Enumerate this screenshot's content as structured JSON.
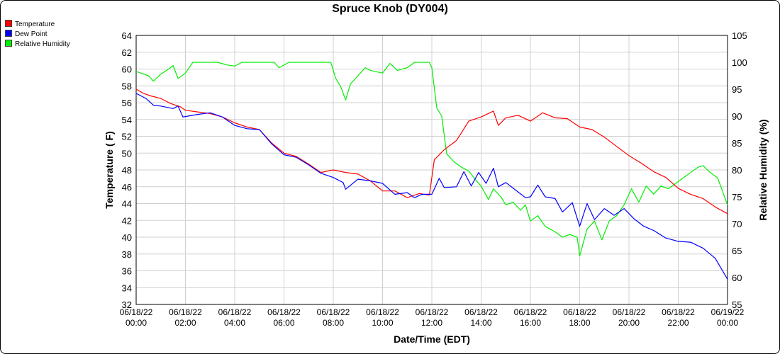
{
  "chart_data": {
    "type": "line",
    "title": "Spruce Knob (DY004)",
    "xlabel": "Date/Time (EDT)",
    "ylabel_left": "Temperature ( F)",
    "ylabel_right": "Relative Humidity (%)",
    "x_range_hours": [
      0,
      24
    ],
    "y_left_lim": [
      32,
      64
    ],
    "y_left_ticks": [
      "32",
      "34",
      "36",
      "38",
      "40",
      "42",
      "44",
      "46",
      "48",
      "50",
      "52",
      "54",
      "56",
      "58",
      "60",
      "62",
      "64"
    ],
    "y_right_lim": [
      55,
      105
    ],
    "y_right_ticks": [
      "55",
      "60",
      "65",
      "70",
      "75",
      "80",
      "85",
      "90",
      "95",
      "100",
      "105"
    ],
    "x_ticks": [
      {
        "h": 0,
        "date": "06/18/22",
        "time": "00:00"
      },
      {
        "h": 2,
        "date": "06/18/22",
        "time": "02:00"
      },
      {
        "h": 4,
        "date": "06/18/22",
        "time": "04:00"
      },
      {
        "h": 6,
        "date": "06/18/22",
        "time": "06:00"
      },
      {
        "h": 8,
        "date": "06/18/22",
        "time": "08:00"
      },
      {
        "h": 10,
        "date": "06/18/22",
        "time": "10:00"
      },
      {
        "h": 12,
        "date": "06/18/22",
        "time": "12:00"
      },
      {
        "h": 14,
        "date": "06/18/22",
        "time": "14:00"
      },
      {
        "h": 16,
        "date": "06/18/22",
        "time": "16:00"
      },
      {
        "h": 18,
        "date": "06/18/22",
        "time": "18:00"
      },
      {
        "h": 20,
        "date": "06/18/22",
        "time": "20:00"
      },
      {
        "h": 22,
        "date": "06/18/22",
        "time": "22:00"
      },
      {
        "h": 24,
        "date": "06/19/22",
        "time": "00:00"
      }
    ],
    "grid": true,
    "legend_position": "top-left",
    "series": [
      {
        "name": "Temperature",
        "axis": "left",
        "color": "#ff0000",
        "points": [
          [
            0,
            57.6
          ],
          [
            0.3,
            57.1
          ],
          [
            0.6,
            56.8
          ],
          [
            1.0,
            56.5
          ],
          [
            1.4,
            55.9
          ],
          [
            1.8,
            55.5
          ],
          [
            2.0,
            55.1
          ],
          [
            2.5,
            54.9
          ],
          [
            3.0,
            54.7
          ],
          [
            3.5,
            54.3
          ],
          [
            4.0,
            53.6
          ],
          [
            4.5,
            53.1
          ],
          [
            5.0,
            52.8
          ],
          [
            5.5,
            51.2
          ],
          [
            6.0,
            50.0
          ],
          [
            6.5,
            49.6
          ],
          [
            7.0,
            48.7
          ],
          [
            7.5,
            47.7
          ],
          [
            8.0,
            48.0
          ],
          [
            8.5,
            47.7
          ],
          [
            9.0,
            47.5
          ],
          [
            9.5,
            46.7
          ],
          [
            10.0,
            45.5
          ],
          [
            10.5,
            45.5
          ],
          [
            11.0,
            44.7
          ],
          [
            11.5,
            45.2
          ],
          [
            11.9,
            45.0
          ],
          [
            12.1,
            49.2
          ],
          [
            12.5,
            50.4
          ],
          [
            13.0,
            51.5
          ],
          [
            13.5,
            53.8
          ],
          [
            14.0,
            54.3
          ],
          [
            14.5,
            55.0
          ],
          [
            14.7,
            53.3
          ],
          [
            15.0,
            54.2
          ],
          [
            15.5,
            54.5
          ],
          [
            16.0,
            53.8
          ],
          [
            16.5,
            54.8
          ],
          [
            17.0,
            54.2
          ],
          [
            17.5,
            54.1
          ],
          [
            18.0,
            53.1
          ],
          [
            18.5,
            52.8
          ],
          [
            19.0,
            51.9
          ],
          [
            19.5,
            50.8
          ],
          [
            20.0,
            49.7
          ],
          [
            20.5,
            48.8
          ],
          [
            21.0,
            47.8
          ],
          [
            21.5,
            47.1
          ],
          [
            22.0,
            45.8
          ],
          [
            22.5,
            45.1
          ],
          [
            23.0,
            44.6
          ],
          [
            23.5,
            43.6
          ],
          [
            24.0,
            42.8
          ]
        ]
      },
      {
        "name": "Dew Point",
        "axis": "left",
        "color": "#0000ff",
        "points": [
          [
            0,
            57.1
          ],
          [
            0.4,
            56.5
          ],
          [
            0.7,
            55.7
          ],
          [
            1.0,
            55.6
          ],
          [
            1.5,
            55.3
          ],
          [
            1.7,
            55.6
          ],
          [
            1.9,
            54.3
          ],
          [
            2.1,
            54.4
          ],
          [
            2.5,
            54.6
          ],
          [
            3.0,
            54.8
          ],
          [
            3.5,
            54.3
          ],
          [
            4.0,
            53.3
          ],
          [
            4.5,
            52.9
          ],
          [
            5.0,
            52.8
          ],
          [
            5.5,
            51.1
          ],
          [
            6.0,
            49.8
          ],
          [
            6.5,
            49.5
          ],
          [
            7.0,
            48.6
          ],
          [
            7.5,
            47.6
          ],
          [
            8.0,
            47.1
          ],
          [
            8.4,
            46.5
          ],
          [
            8.5,
            45.7
          ],
          [
            9.0,
            46.9
          ],
          [
            9.5,
            46.7
          ],
          [
            10.0,
            46.4
          ],
          [
            10.5,
            45.1
          ],
          [
            11.0,
            45.3
          ],
          [
            11.3,
            44.7
          ],
          [
            11.6,
            45.1
          ],
          [
            12.0,
            45.1
          ],
          [
            12.3,
            47.0
          ],
          [
            12.5,
            45.9
          ],
          [
            13.0,
            46.0
          ],
          [
            13.3,
            47.8
          ],
          [
            13.6,
            46.1
          ],
          [
            13.9,
            47.7
          ],
          [
            14.2,
            46.4
          ],
          [
            14.5,
            48.2
          ],
          [
            14.7,
            46.0
          ],
          [
            15.0,
            46.5
          ],
          [
            15.4,
            45.6
          ],
          [
            15.8,
            44.7
          ],
          [
            16.0,
            44.8
          ],
          [
            16.3,
            46.2
          ],
          [
            16.6,
            44.8
          ],
          [
            17.0,
            44.6
          ],
          [
            17.3,
            43.0
          ],
          [
            17.7,
            44.1
          ],
          [
            18.0,
            41.3
          ],
          [
            18.3,
            44.0
          ],
          [
            18.6,
            42.1
          ],
          [
            19.0,
            43.4
          ],
          [
            19.4,
            42.6
          ],
          [
            19.8,
            43.4
          ],
          [
            20.2,
            42.2
          ],
          [
            20.6,
            41.3
          ],
          [
            21.0,
            40.8
          ],
          [
            21.5,
            39.9
          ],
          [
            22.0,
            39.5
          ],
          [
            22.5,
            39.4
          ],
          [
            23.0,
            38.7
          ],
          [
            23.5,
            37.5
          ],
          [
            24.0,
            35.0
          ]
        ]
      },
      {
        "name": "Relative Humidity",
        "axis": "right",
        "color": "#00ee00",
        "points": [
          [
            0,
            98.3
          ],
          [
            0.5,
            97.5
          ],
          [
            0.7,
            96.5
          ],
          [
            1.0,
            97.8
          ],
          [
            1.3,
            98.7
          ],
          [
            1.5,
            99.4
          ],
          [
            1.7,
            97.0
          ],
          [
            2.0,
            98.0
          ],
          [
            2.3,
            100.0
          ],
          [
            2.8,
            100.0
          ],
          [
            3.3,
            100.0
          ],
          [
            3.7,
            99.5
          ],
          [
            4.0,
            99.3
          ],
          [
            4.3,
            100.0
          ],
          [
            5.0,
            100.0
          ],
          [
            5.6,
            100.0
          ],
          [
            5.8,
            99.0
          ],
          [
            6.2,
            100.0
          ],
          [
            7.0,
            100.0
          ],
          [
            7.9,
            100.0
          ],
          [
            8.1,
            97.0
          ],
          [
            8.3,
            95.5
          ],
          [
            8.5,
            93.0
          ],
          [
            8.7,
            96.0
          ],
          [
            9.0,
            97.5
          ],
          [
            9.3,
            99.0
          ],
          [
            9.5,
            98.5
          ],
          [
            10.0,
            98.0
          ],
          [
            10.3,
            99.8
          ],
          [
            10.6,
            98.5
          ],
          [
            11.0,
            99.0
          ],
          [
            11.3,
            100.0
          ],
          [
            11.9,
            100.0
          ],
          [
            12.0,
            99.0
          ],
          [
            12.2,
            91.5
          ],
          [
            12.4,
            90.0
          ],
          [
            12.6,
            83.0
          ],
          [
            12.9,
            81.5
          ],
          [
            13.2,
            80.5
          ],
          [
            13.5,
            79.8
          ],
          [
            13.8,
            78.0
          ],
          [
            14.0,
            77.0
          ],
          [
            14.3,
            74.5
          ],
          [
            14.5,
            76.5
          ],
          [
            14.8,
            75.0
          ],
          [
            15.0,
            73.5
          ],
          [
            15.3,
            74.0
          ],
          [
            15.6,
            72.5
          ],
          [
            15.8,
            73.5
          ],
          [
            16.0,
            70.5
          ],
          [
            16.3,
            71.5
          ],
          [
            16.6,
            69.5
          ],
          [
            17.0,
            68.5
          ],
          [
            17.3,
            67.5
          ],
          [
            17.6,
            68.0
          ],
          [
            17.9,
            67.5
          ],
          [
            18.0,
            64.0
          ],
          [
            18.3,
            69.0
          ],
          [
            18.6,
            70.5
          ],
          [
            18.9,
            67.0
          ],
          [
            19.2,
            70.5
          ],
          [
            19.5,
            71.5
          ],
          [
            19.8,
            73.5
          ],
          [
            20.1,
            76.5
          ],
          [
            20.4,
            74.0
          ],
          [
            20.7,
            77.0
          ],
          [
            21.0,
            75.5
          ],
          [
            21.3,
            77.0
          ],
          [
            21.6,
            76.5
          ],
          [
            21.9,
            77.5
          ],
          [
            22.2,
            78.5
          ],
          [
            22.5,
            79.5
          ],
          [
            22.8,
            80.5
          ],
          [
            23.0,
            80.8
          ],
          [
            23.3,
            79.5
          ],
          [
            23.6,
            78.5
          ],
          [
            24.0,
            73.5
          ]
        ]
      }
    ]
  }
}
